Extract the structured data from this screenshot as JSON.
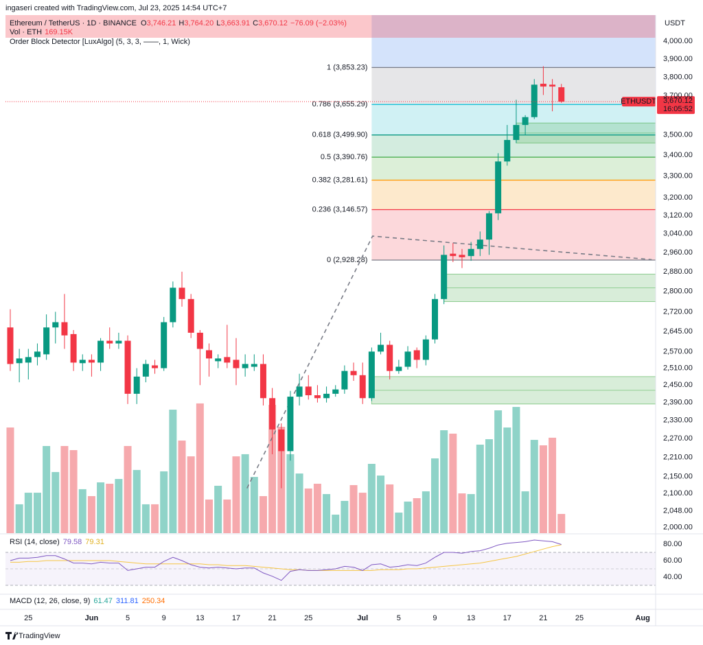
{
  "header": {
    "credit": "ingaseri created with TradingView.com, Jul 23, 2025 14:54 UTC+7"
  },
  "footer": {
    "brand": "TradingView"
  },
  "chart_data": {
    "type": "candlestick",
    "title": "Ethereum / TetherUS · 1D · BINANCE",
    "ohlc_legend": [
      {
        "key": "O",
        "value": "3,746.21"
      },
      {
        "key": "H",
        "value": "3,764.20"
      },
      {
        "key": "L",
        "value": "3,663.91"
      },
      {
        "key": "C",
        "value": "3,670.12"
      }
    ],
    "change": "−76.09 (−2.03%)",
    "volume_legend": {
      "name": "Vol · ETH",
      "value": "169.15K"
    },
    "indicator": "Order Block Detector [LuxAlgo] (5, 3, 3, ——, 1, Wick)",
    "currency": "USDT",
    "symbol_label": "ETHUSDT",
    "last_price_label": "3,670.12",
    "countdown": "16:05:52",
    "up_color": "#089981",
    "down_color": "#f23645",
    "volume_up_color": "#8fd3c8",
    "volume_down_color": "#f6a9ad",
    "log_scale": true,
    "grid": true,
    "open": [
      2660,
      2528,
      2530,
      2550,
      2560,
      2660,
      2680,
      2635,
      2528,
      2540,
      2530,
      2610,
      2600,
      2610,
      2420,
      2480,
      2520,
      2510,
      2680,
      2815,
      2770,
      2640,
      2575,
      2535,
      2550,
      2540,
      2510,
      2515,
      2525,
      2405,
      2300,
      2230,
      2410,
      2445,
      2415,
      2405,
      2420,
      2435,
      2500,
      2485,
      2405,
      2570,
      2595,
      2500,
      2515,
      2575,
      2540,
      2615,
      2770,
      2955,
      2950,
      2945,
      2975,
      3015,
      3130,
      3370,
      3475,
      3550,
      3590,
      3765,
      3760,
      3746.21
    ],
    "high": [
      2730,
      2580,
      2580,
      2600,
      2710,
      2720,
      2790,
      2650,
      2560,
      2560,
      2620,
      2660,
      2640,
      2630,
      2510,
      2540,
      2540,
      2700,
      2840,
      2880,
      2790,
      2650,
      2600,
      2560,
      2670,
      2620,
      2560,
      2560,
      2560,
      2440,
      2320,
      2430,
      2490,
      2485,
      2450,
      2445,
      2450,
      2520,
      2530,
      2530,
      2585,
      2640,
      2610,
      2540,
      2590,
      2585,
      2630,
      2790,
      2990,
      3000,
      2975,
      3005,
      3050,
      3140,
      3410,
      3550,
      3680,
      3600,
      3790,
      3860,
      3790,
      3764.2
    ],
    "low": [
      2500,
      2460,
      2470,
      2520,
      2540,
      2600,
      2580,
      2500,
      2500,
      2480,
      2500,
      2580,
      2580,
      2385,
      2385,
      2460,
      2490,
      2500,
      2660,
      2740,
      2620,
      2450,
      2480,
      2510,
      2510,
      2450,
      2480,
      2500,
      2380,
      2220,
      2115,
      2200,
      2380,
      2400,
      2390,
      2390,
      2410,
      2420,
      2465,
      2385,
      2395,
      2560,
      2470,
      2490,
      2505,
      2510,
      2520,
      2600,
      2750,
      2920,
      2895,
      2925,
      2945,
      2950,
      3100,
      3350,
      3460,
      3500,
      3580,
      3705,
      3620,
      3663.91
    ],
    "close": [
      2525,
      2545,
      2550,
      2570,
      2660,
      2680,
      2630,
      2530,
      2540,
      2530,
      2610,
      2600,
      2610,
      2420,
      2480,
      2525,
      2510,
      2680,
      2815,
      2770,
      2640,
      2580,
      2545,
      2545,
      2530,
      2510,
      2525,
      2525,
      2405,
      2300,
      2230,
      2410,
      2445,
      2415,
      2405,
      2420,
      2435,
      2500,
      2485,
      2405,
      2570,
      2595,
      2500,
      2515,
      2570,
      2540,
      2615,
      2770,
      2950,
      2945,
      2940,
      2975,
      3015,
      3130,
      3370,
      3475,
      3550,
      3590,
      3760,
      3750,
      3750,
      3670.12
    ],
    "volume": [
      930,
      254,
      356,
      356,
      767,
      538,
      767,
      731,
      387,
      326,
      447,
      435,
      477,
      767,
      556,
      254,
      254,
      544,
      1087,
      815,
      676,
      1142,
      296,
      417,
      296,
      676,
      695,
      495,
      326,
      1129,
      936,
      695,
      525,
      393,
      435,
      344,
      163,
      284,
      423,
      356,
      610,
      507,
      429,
      181,
      278,
      308,
      368,
      658,
      906,
      876,
      350,
      344,
      779,
      827,
      1081,
      930,
      1111,
      368,
      821,
      773,
      840,
      169.15
    ],
    "volume_ylim": [
      0,
      4566
    ],
    "xlim": [
      -0.53,
      71.43
    ],
    "xticks": [
      {
        "value": 2,
        "label": "25"
      },
      {
        "value": 9,
        "label": "Jun"
      },
      {
        "value": 13,
        "label": "5"
      },
      {
        "value": 17,
        "label": "9"
      },
      {
        "value": 21,
        "label": "13"
      },
      {
        "value": 25,
        "label": "17"
      },
      {
        "value": 29,
        "label": "21"
      },
      {
        "value": 33,
        "label": "25"
      },
      {
        "value": 39,
        "label": "Jul"
      },
      {
        "value": 43,
        "label": "5"
      },
      {
        "value": 47,
        "label": "9"
      },
      {
        "value": 51,
        "label": "13"
      },
      {
        "value": 55,
        "label": "17"
      },
      {
        "value": 59,
        "label": "21"
      },
      {
        "value": 63,
        "label": "25"
      },
      {
        "value": 70,
        "label": "Aug"
      }
    ],
    "ylim": [
      1982,
      4152
    ],
    "yticks": [
      {
        "value": 4000,
        "label": "4,000.00"
      },
      {
        "value": 3900,
        "label": "3,900.00"
      },
      {
        "value": 3800,
        "label": "3,800.00"
      },
      {
        "value": 3700,
        "label": "3,700.00"
      },
      {
        "value": 3500,
        "label": "3,500.00"
      },
      {
        "value": 3400,
        "label": "3,400.00"
      },
      {
        "value": 3300,
        "label": "3,300.00"
      },
      {
        "value": 3200,
        "label": "3,200.00"
      },
      {
        "value": 3120,
        "label": "3,120.00"
      },
      {
        "value": 3040,
        "label": "3,040.00"
      },
      {
        "value": 2960,
        "label": "2,960.00"
      },
      {
        "value": 2880,
        "label": "2,880.00"
      },
      {
        "value": 2800,
        "label": "2,800.00"
      },
      {
        "value": 2720,
        "label": "2,720.00"
      },
      {
        "value": 2645,
        "label": "2,645.00"
      },
      {
        "value": 2570,
        "label": "2,570.00"
      },
      {
        "value": 2510,
        "label": "2,510.00"
      },
      {
        "value": 2450,
        "label": "2,450.00"
      },
      {
        "value": 2390,
        "label": "2,390.00"
      },
      {
        "value": 2330,
        "label": "2,330.00"
      },
      {
        "value": 2270,
        "label": "2,270.00"
      },
      {
        "value": 2210,
        "label": "2,210.00"
      },
      {
        "value": 2150,
        "label": "2,150.00"
      },
      {
        "value": 2100,
        "label": "2,100.00"
      },
      {
        "value": 2048,
        "label": "2,048.00"
      },
      {
        "value": 2000,
        "label": "2,000.00"
      }
    ],
    "fib_start": 40,
    "fib_extension_fill": "#d4e3fb",
    "fib_levels": [
      {
        "label": "1 (3,853.23)",
        "value": 3853.23,
        "color": "#787b86",
        "fill": "#e6e6e8"
      },
      {
        "label": "0.786 (3,655.29)",
        "value": 3655.29,
        "color": "#00bcd4",
        "fill": "#d0f1f4"
      },
      {
        "label": "0.618 (3,499.90)",
        "value": 3499.9,
        "color": "#089981",
        "fill": "#d3ecdf"
      },
      {
        "label": "0.5 (3,390.76)",
        "value": 3390.76,
        "color": "#4caf50",
        "fill": "#dcefd8"
      },
      {
        "label": "0.382 (3,281.61)",
        "value": 3281.61,
        "color": "#ff9800",
        "fill": "#fde9cc"
      },
      {
        "label": "0.236 (3,146.57)",
        "value": 3146.57,
        "color": "#f23645",
        "fill": "#fcd8db"
      },
      {
        "label": "0 (2,928.28)",
        "value": 2928.28,
        "color": "#787b86"
      }
    ],
    "order_blocks": [
      {
        "start": 56,
        "top": 3560,
        "bottom": 3460
      },
      {
        "start": 48,
        "top": 2870,
        "bottom": 2760
      },
      {
        "start": 40,
        "top": 2480,
        "bottom": 2385
      }
    ],
    "order_block_color": "#4caf50",
    "trendline": {
      "x": [
        26.2,
        40.1,
        71
      ],
      "y": [
        2115,
        3030,
        2930
      ],
      "color": "#787b86"
    },
    "rsi": {
      "title": "RSI (14, close)",
      "value_label": "79.58",
      "ma_label": "79.31",
      "color": "#7e57c2",
      "ma_color": "#f5c542",
      "values": [
        60,
        63,
        63,
        64,
        66,
        66,
        62,
        57,
        57,
        56,
        58,
        57,
        57,
        48,
        50,
        52,
        52,
        59,
        64,
        60,
        55,
        52,
        51,
        52,
        51,
        50,
        51,
        51,
        45,
        41,
        36,
        47,
        49,
        48,
        48,
        49,
        50,
        53,
        52,
        48,
        55,
        56,
        52,
        53,
        55,
        54,
        57,
        64,
        70,
        70,
        69,
        71,
        72,
        75,
        79,
        81,
        82,
        83,
        85,
        84,
        83,
        79.58
      ],
      "ma": [
        58,
        58,
        59,
        59,
        60,
        60,
        60,
        60,
        60,
        60,
        60,
        60,
        59,
        58,
        57,
        56,
        56,
        56,
        56,
        56,
        56,
        56,
        55,
        55,
        54,
        54,
        54,
        53,
        52,
        51,
        50,
        49,
        49,
        48,
        48,
        48,
        48,
        48,
        48,
        48,
        48,
        49,
        49,
        49,
        50,
        50,
        51,
        52,
        53,
        54,
        55,
        56,
        57,
        59,
        61,
        63,
        65,
        68,
        71,
        74,
        77,
        79.31
      ],
      "bands": [
        70,
        50,
        30
      ],
      "ylim": [
        19.2,
        91.7
      ],
      "yticks": [
        {
          "value": 80,
          "label": "80.00"
        },
        {
          "value": 60,
          "label": "60.00"
        },
        {
          "value": 40,
          "label": "40.00"
        }
      ]
    },
    "macd": {
      "title": "MACD (12, 26, close, 9)",
      "labels": [
        {
          "text": "61.47",
          "color": "#26a69a"
        },
        {
          "text": "311.81",
          "color": "#2962ff"
        },
        {
          "text": "250.34",
          "color": "#ff6d00"
        }
      ]
    }
  }
}
